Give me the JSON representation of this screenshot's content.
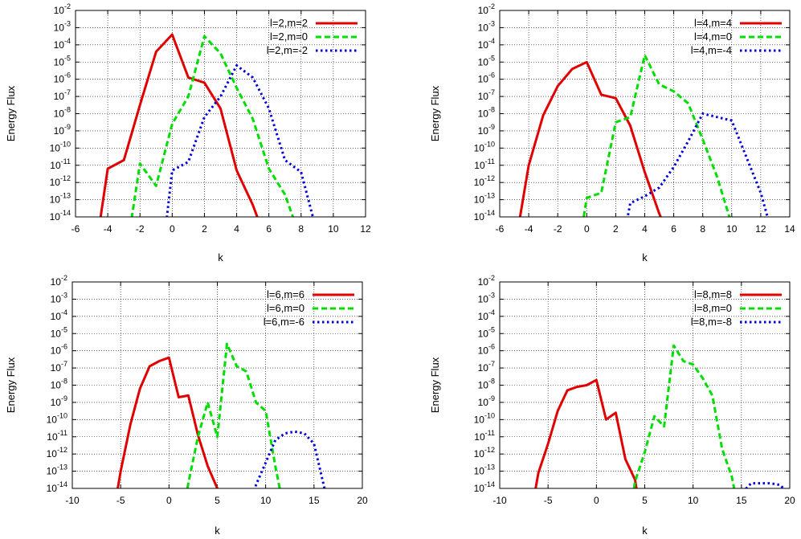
{
  "chart_data": [
    {
      "type": "line",
      "xlabel": "k",
      "ylabel": "Energy Flux",
      "xlim": [
        -6,
        12
      ],
      "ylim_log10": [
        -14,
        -2
      ],
      "yscale": "log",
      "grid": true,
      "legend_position": "top-right",
      "xticks": [
        "-6",
        "-4",
        "-2",
        "0",
        "2",
        "4",
        "6",
        "8",
        "10",
        "12"
      ],
      "series": [
        {
          "name": "l=2,m=2",
          "color": "#e00000",
          "dash": "solid",
          "x": [
            -4.6,
            -4,
            -3,
            -2,
            -1,
            0,
            1,
            2,
            3,
            4,
            5,
            5.4
          ],
          "log10y": [
            -15,
            -11.2,
            -10.7,
            -7.5,
            -4.4,
            -3.4,
            -5.9,
            -6.2,
            -7.7,
            -11.3,
            -13.3,
            -14.3
          ]
        },
        {
          "name": "l=2,m=0",
          "color": "#00dd00",
          "dash": "dashed",
          "x": [
            -2.6,
            -2,
            -1,
            0,
            1,
            2,
            3,
            4,
            5,
            6,
            7,
            7.6
          ],
          "log10y": [
            -14.6,
            -10.9,
            -12.2,
            -8.6,
            -7.0,
            -3.5,
            -4.5,
            -6.5,
            -8.3,
            -11.2,
            -12.7,
            -14.3
          ]
        },
        {
          "name": "l=2,m=-2",
          "color": "#0000dd",
          "dash": "dotted",
          "x": [
            -0.4,
            0,
            1,
            2,
            3,
            4,
            5,
            6,
            7,
            8,
            8.9
          ],
          "log10y": [
            -14.6,
            -11.3,
            -10.8,
            -8.2,
            -7.0,
            -5.2,
            -5.9,
            -7.7,
            -10.7,
            -11.4,
            -14.6
          ]
        }
      ]
    },
    {
      "type": "line",
      "xlabel": "k",
      "ylabel": "Energy Flux",
      "xlim": [
        -6,
        14
      ],
      "ylim_log10": [
        -14,
        -2
      ],
      "yscale": "log",
      "grid": true,
      "legend_position": "top-right",
      "xticks": [
        "-6",
        "-4",
        "-2",
        "0",
        "2",
        "4",
        "6",
        "8",
        "10",
        "12",
        "14"
      ],
      "series": [
        {
          "name": "l=4,m=4",
          "color": "#e00000",
          "dash": "solid",
          "x": [
            -4.8,
            -4,
            -3,
            -2,
            -1,
            0,
            1,
            2,
            3,
            4,
            5,
            5.6
          ],
          "log10y": [
            -15.0,
            -11.0,
            -8.1,
            -6.4,
            -5.4,
            -5.0,
            -6.9,
            -7.1,
            -8.7,
            -11.4,
            -13.8,
            -15.0
          ]
        },
        {
          "name": "l=4,m=0",
          "color": "#00dd00",
          "dash": "dashed",
          "x": [
            -0.4,
            0,
            1,
            2,
            3,
            4,
            5,
            6,
            7,
            8,
            9,
            10.2
          ],
          "log10y": [
            -15.0,
            -12.9,
            -12.6,
            -8.5,
            -8.2,
            -4.6,
            -6.3,
            -6.7,
            -7.4,
            -9.5,
            -11.7,
            -15.0
          ]
        },
        {
          "name": "l=4,m=-4",
          "color": "#0000dd",
          "dash": "dotted",
          "x": [
            2.6,
            3,
            4,
            5,
            6,
            7,
            8,
            9,
            10,
            11,
            12,
            12.8
          ],
          "log10y": [
            -15.0,
            -13.2,
            -12.8,
            -12.3,
            -11.1,
            -9.6,
            -8.0,
            -8.2,
            -8.4,
            -10.5,
            -12.6,
            -15.0
          ]
        }
      ]
    },
    {
      "type": "line",
      "xlabel": "k",
      "ylabel": "Energy Flux",
      "xlim": [
        -10,
        20
      ],
      "ylim_log10": [
        -14,
        -2
      ],
      "yscale": "log",
      "grid": true,
      "legend_position": "top-right",
      "xticks": [
        "-10",
        "-5",
        "0",
        "5",
        "10",
        "15",
        "20"
      ],
      "series": [
        {
          "name": "l=6,m=6",
          "color": "#e00000",
          "dash": "solid",
          "x": [
            -5.6,
            -5,
            -4,
            -3,
            -2,
            -1,
            0,
            1,
            2,
            3,
            4,
            5,
            6
          ],
          "log10y": [
            -15.0,
            -13.0,
            -10.3,
            -8.2,
            -6.9,
            -6.6,
            -6.4,
            -8.7,
            -8.6,
            -10.9,
            -12.7,
            -14.0,
            -15.0
          ]
        },
        {
          "name": "l=6,m=0",
          "color": "#00dd00",
          "dash": "dashed",
          "x": [
            1.6,
            2,
            3,
            4,
            5,
            6,
            7,
            8,
            9,
            10,
            11,
            11.8
          ],
          "log10y": [
            -15.0,
            -13.7,
            -11.0,
            -9.0,
            -11.0,
            -5.6,
            -6.9,
            -7.2,
            -9.0,
            -9.5,
            -12.7,
            -15.0
          ]
        },
        {
          "name": "l=6,m=-6",
          "color": "#0000dd",
          "dash": "dotted",
          "x": [
            8.8,
            9,
            10,
            11,
            12,
            13,
            14,
            15,
            16,
            16.5
          ],
          "log10y": [
            -15.0,
            -13.8,
            -12.5,
            -11.2,
            -10.8,
            -10.7,
            -10.8,
            -11.4,
            -13.8,
            -15.0
          ]
        }
      ]
    },
    {
      "type": "line",
      "xlabel": "k",
      "ylabel": "Energy Flux",
      "xlim": [
        -10,
        20
      ],
      "ylim_log10": [
        -14,
        -2
      ],
      "yscale": "log",
      "grid": true,
      "legend_position": "top-right",
      "xticks": [
        "-10",
        "-5",
        "0",
        "5",
        "10",
        "15",
        "20"
      ],
      "series": [
        {
          "name": "l=8,m=8",
          "color": "#e00000",
          "dash": "solid",
          "x": [
            -6.6,
            -6,
            -5,
            -4,
            -3,
            -2,
            -1,
            0,
            1,
            2,
            3,
            4,
            4.4
          ],
          "log10y": [
            -15.0,
            -13.1,
            -11.4,
            -9.5,
            -8.3,
            -8.1,
            -8.0,
            -7.7,
            -10.0,
            -9.6,
            -12.3,
            -13.5,
            -15.0
          ]
        },
        {
          "name": "l=8,m=0",
          "color": "#00dd00",
          "dash": "dashed",
          "x": [
            3.6,
            4,
            5,
            6,
            7,
            8,
            9,
            10,
            11,
            12,
            13,
            14,
            14.6
          ],
          "log10y": [
            -15.0,
            -13.6,
            -11.9,
            -9.8,
            -10.4,
            -5.7,
            -6.6,
            -6.8,
            -7.6,
            -8.6,
            -11.7,
            -13.3,
            -15.0
          ]
        },
        {
          "name": "l=8,m=-8",
          "color": "#0000dd",
          "dash": "dotted",
          "x": [
            14.6,
            15,
            16,
            17,
            18,
            19,
            19.7
          ],
          "log10y": [
            -15.0,
            -14.3,
            -13.7,
            -13.7,
            -13.7,
            -13.8,
            -14.2
          ]
        }
      ]
    }
  ]
}
